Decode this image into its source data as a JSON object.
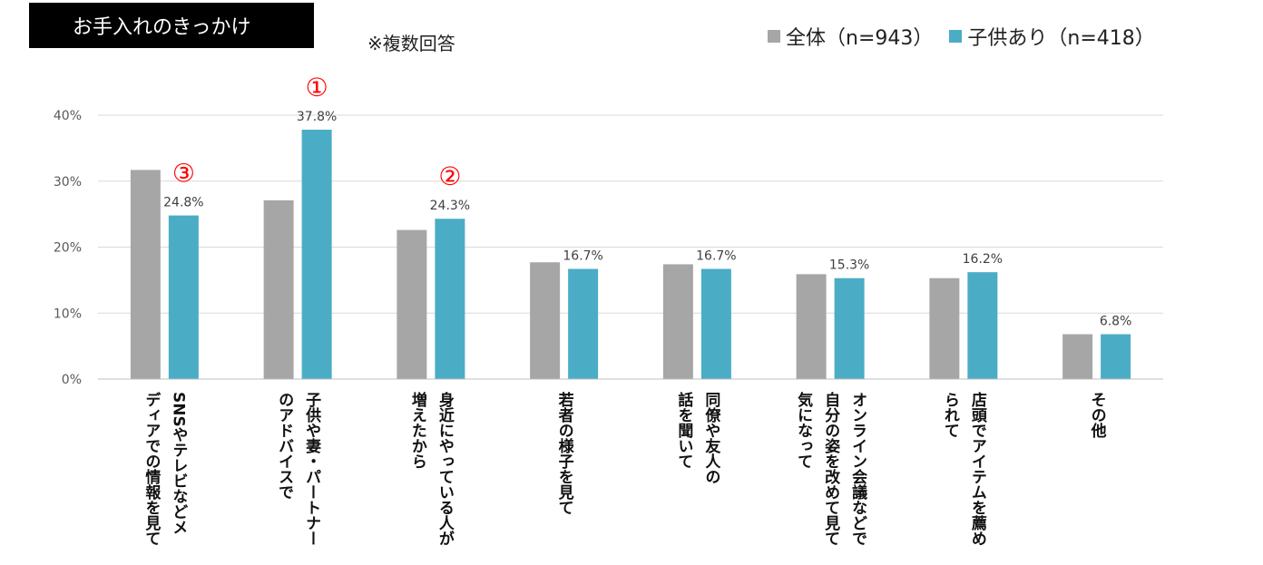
{
  "title": "お手入れのきっかけ",
  "note": "※複数回答",
  "legend": {
    "all": "全体（n=943）",
    "kids": "子供あり（n=418）"
  },
  "colors": {
    "all": "#a6a6a6",
    "kids": "#4bacc6",
    "rank": "#ff0000",
    "grid": "#d9d9d9"
  },
  "chart_data": {
    "type": "bar",
    "categories": [
      "SNSやテレビなどメ\nディアでの情報を見て",
      "子供や妻・パートナー\nのアドバイスで",
      "身近にやっている人が\n増えたから",
      "若者の様子を見て",
      "同僚や友人の\n話を聞いて",
      "オンライン会議などで\n自分の姿を改めて見て\n気になって",
      "店頭でアイテムを薦め\nられて",
      "その他"
    ],
    "series": [
      {
        "name": "全体（n=943）",
        "values": [
          31.7,
          27.1,
          22.6,
          17.7,
          17.4,
          15.9,
          15.3,
          6.8
        ]
      },
      {
        "name": "子供あり（n=418）",
        "values": [
          24.8,
          37.8,
          24.3,
          16.7,
          16.7,
          15.3,
          16.2,
          6.8
        ],
        "labels": [
          "24.8%",
          "37.8%",
          "24.3%",
          "16.7%",
          "16.7%",
          "15.3%",
          "16.2%",
          "6.8%"
        ]
      }
    ],
    "yticks": [
      "0%",
      "10%",
      "20%",
      "30%",
      "40%"
    ],
    "ylim": [
      0,
      40
    ],
    "grid": true,
    "annotations": [
      {
        "category_index": 1,
        "text": "①"
      },
      {
        "category_index": 2,
        "text": "②"
      },
      {
        "category_index": 0,
        "text": "③"
      }
    ]
  }
}
